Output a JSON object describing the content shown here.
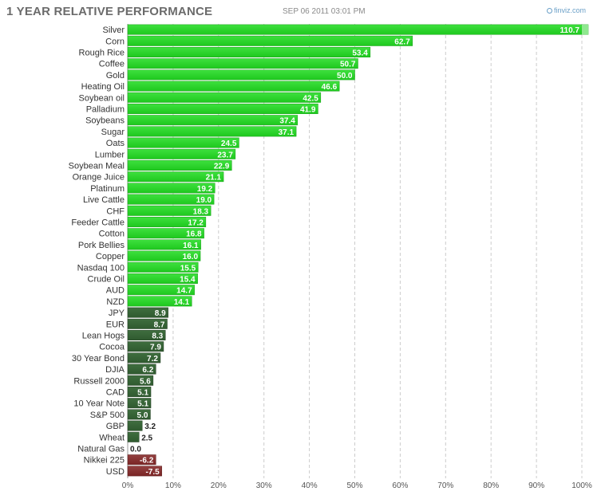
{
  "header": {
    "title": "1 YEAR RELATIVE PERFORMANCE",
    "timestamp": "SEP 06 2011 03:01 PM",
    "brand": "finviz.com",
    "brand_icon": "globe-icon"
  },
  "chart_data": {
    "type": "bar",
    "orientation": "horizontal",
    "title": "1 YEAR RELATIVE PERFORMANCE",
    "xlabel": "",
    "ylabel": "",
    "xlim": [
      0,
      100
    ],
    "x_ticks": [
      "0%",
      "10%",
      "20%",
      "30%",
      "40%",
      "50%",
      "60%",
      "70%",
      "80%",
      "90%",
      "100%"
    ],
    "grid": "vertical-dashed",
    "legend": "none",
    "colors": {
      "strong": "#1ec81e",
      "weak": "#2f5a2f",
      "negative": "#7a2525"
    },
    "categories": [
      "Silver",
      "Corn",
      "Rough Rice",
      "Coffee",
      "Gold",
      "Heating Oil",
      "Soybean oil",
      "Palladium",
      "Soybeans",
      "Sugar",
      "Oats",
      "Lumber",
      "Soybean Meal",
      "Orange Juice",
      "Platinum",
      "Live Cattle",
      "CHF",
      "Feeder Cattle",
      "Cotton",
      "Pork Bellies",
      "Copper",
      "Nasdaq 100",
      "Crude Oil",
      "AUD",
      "NZD",
      "JPY",
      "EUR",
      "Lean Hogs",
      "Cocoa",
      "30 Year Bond",
      "DJIA",
      "Russell 2000",
      "CAD",
      "10 Year Note",
      "S&P 500",
      "GBP",
      "Wheat",
      "Natural Gas",
      "Nikkei 225",
      "USD"
    ],
    "values": [
      110.7,
      62.7,
      53.4,
      50.7,
      50.0,
      46.6,
      42.5,
      41.9,
      37.4,
      37.1,
      24.5,
      23.7,
      22.9,
      21.1,
      19.2,
      19.0,
      18.3,
      17.2,
      16.8,
      16.1,
      16.0,
      15.5,
      15.4,
      14.7,
      14.1,
      8.9,
      8.7,
      8.3,
      7.9,
      7.2,
      6.2,
      5.6,
      5.1,
      5.1,
      5.0,
      3.2,
      2.5,
      0.0,
      -6.2,
      -7.5
    ],
    "value_labels": [
      "110.7",
      "62.7",
      "53.4",
      "50.7",
      "50.0",
      "46.6",
      "42.5",
      "41.9",
      "37.4",
      "37.1",
      "24.5",
      "23.7",
      "22.9",
      "21.1",
      "19.2",
      "19.0",
      "18.3",
      "17.2",
      "16.8",
      "16.1",
      "16.0",
      "15.5",
      "15.4",
      "14.7",
      "14.1",
      "8.9",
      "8.7",
      "8.3",
      "7.9",
      "7.2",
      "6.2",
      "5.6",
      "5.1",
      "5.1",
      "5.0",
      "3.2",
      "2.5",
      "0.0",
      "-6.2",
      "-7.5"
    ]
  }
}
